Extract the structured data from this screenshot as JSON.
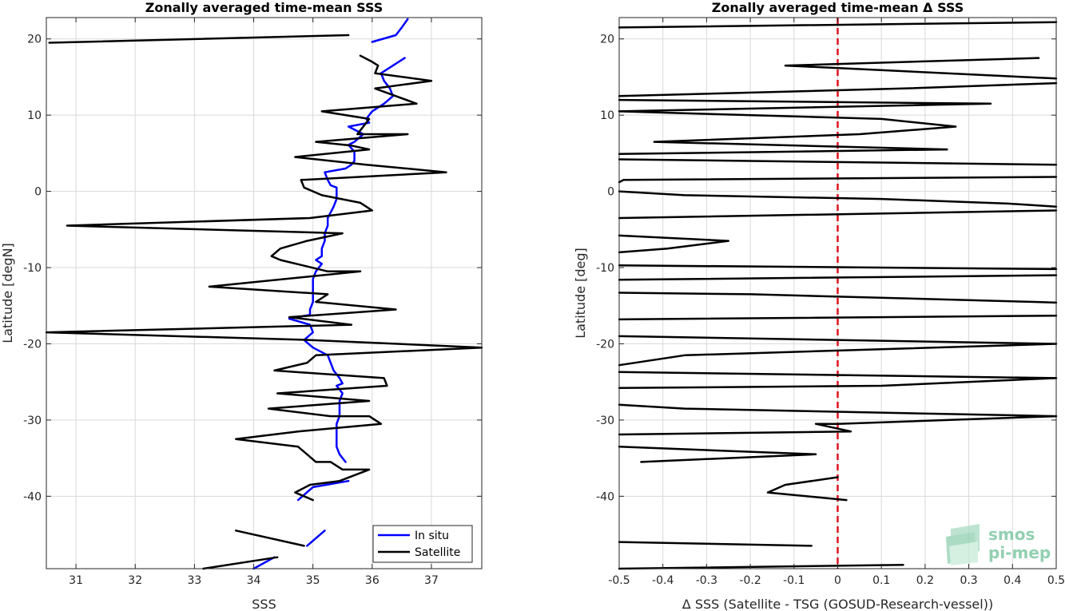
{
  "colors": {
    "insitu": "#0000ff",
    "satellite": "#000000",
    "zero_line": "#e0141e",
    "grid": "#d9d9d9",
    "logo": "#7fc8a4"
  },
  "logo": {
    "line1": "smos",
    "line2": "pi-mep"
  },
  "chart_data": [
    {
      "type": "line",
      "title": "Zonally averaged time-mean SSS",
      "xlabel": "SSS",
      "ylabel": "Latitude [degN]",
      "xlim": [
        30.5,
        37.85
      ],
      "ylim": [
        -49.5,
        22.8
      ],
      "xticks": [
        31,
        32,
        33,
        34,
        35,
        36,
        37
      ],
      "yticks": [
        -40,
        -30,
        -20,
        -10,
        0,
        10,
        20
      ],
      "grid": true,
      "legend": {
        "placement": "bottom-right",
        "entries": [
          "In situ",
          "Satellite"
        ]
      },
      "series": [
        {
          "name": "In situ",
          "color": "blue",
          "segments": [
            [
              [
                36.0,
                19.6
              ],
              [
                36.4,
                20.5
              ],
              [
                36.5,
                21.5
              ],
              [
                36.6,
                22.6
              ]
            ],
            [
              [
                36.55,
                17.5
              ],
              [
                36.15,
                15.5
              ],
              [
                36.2,
                14.5
              ],
              [
                36.3,
                13.5
              ],
              [
                36.35,
                12.5
              ],
              [
                36.2,
                11.5
              ],
              [
                36.0,
                10.5
              ],
              [
                35.9,
                9.5
              ],
              [
                35.95,
                9.0
              ],
              [
                35.6,
                8.5
              ],
              [
                35.85,
                7.5
              ],
              [
                35.7,
                6.5
              ],
              [
                35.6,
                6.1
              ],
              [
                35.7,
                5.2
              ],
              [
                35.7,
                4.0
              ],
              [
                35.65,
                3.5
              ],
              [
                35.55,
                3.0
              ],
              [
                35.2,
                2.5
              ],
              [
                35.25,
                1.5
              ],
              [
                35.3,
                0.8
              ],
              [
                35.4,
                0.5
              ],
              [
                35.4,
                -1.0
              ],
              [
                35.35,
                -2.0
              ],
              [
                35.25,
                -3.5
              ],
              [
                35.25,
                -4.5
              ],
              [
                35.2,
                -5.5
              ],
              [
                35.2,
                -6.5
              ],
              [
                35.15,
                -7.5
              ],
              [
                35.15,
                -8.5
              ],
              [
                35.05,
                -9.0
              ],
              [
                35.15,
                -9.5
              ],
              [
                35.05,
                -10.5
              ],
              [
                35.0,
                -11.5
              ],
              [
                35.0,
                -12.5
              ],
              [
                35.0,
                -13.5
              ],
              [
                35.0,
                -14.5
              ],
              [
                34.95,
                -15.5
              ],
              [
                34.95,
                -16.2
              ],
              [
                34.6,
                -16.7
              ],
              [
                34.95,
                -17.5
              ],
              [
                35.0,
                -18.5
              ],
              [
                34.85,
                -19.5
              ],
              [
                35.0,
                -20.5
              ],
              [
                35.25,
                -21.5
              ],
              [
                35.3,
                -22.5
              ],
              [
                35.35,
                -23.5
              ],
              [
                35.45,
                -24.5
              ],
              [
                35.5,
                -25.2
              ],
              [
                35.4,
                -25.5
              ],
              [
                35.5,
                -26.5
              ],
              [
                35.45,
                -27.5
              ],
              [
                35.45,
                -28.5
              ],
              [
                35.45,
                -29.5
              ],
              [
                35.4,
                -30.5
              ],
              [
                35.4,
                -31.5
              ],
              [
                35.4,
                -32.5
              ],
              [
                35.4,
                -33.5
              ],
              [
                35.45,
                -34.5
              ],
              [
                35.55,
                -35.5
              ]
            ],
            [
              [
                35.6,
                -38.0
              ],
              [
                35.0,
                -38.8
              ],
              [
                34.75,
                -40.5
              ]
            ],
            [
              [
                35.2,
                -44.5
              ],
              [
                34.9,
                -46.5
              ]
            ],
            [
              [
                34.35,
                -48.0
              ],
              [
                34.0,
                -49.5
              ]
            ]
          ]
        },
        {
          "name": "Satellite",
          "color": "black",
          "segments": [
            [
              [
                30.55,
                19.5
              ],
              [
                35.6,
                20.5
              ]
            ],
            [
              [
                35.8,
                17.8
              ],
              [
                36.0,
                17.0
              ],
              [
                36.1,
                16.5
              ],
              [
                36.05,
                15.5
              ],
              [
                37.0,
                14.5
              ],
              [
                36.05,
                13.5
              ],
              [
                36.4,
                12.5
              ],
              [
                36.75,
                11.5
              ],
              [
                35.15,
                10.5
              ],
              [
                35.95,
                9.5
              ],
              [
                35.85,
                8.5
              ],
              [
                35.75,
                7.5
              ],
              [
                36.6,
                7.5
              ],
              [
                35.05,
                6.5
              ],
              [
                35.65,
                6.0
              ],
              [
                35.95,
                5.5
              ],
              [
                34.7,
                4.5
              ],
              [
                35.9,
                3.5
              ],
              [
                37.25,
                2.5
              ],
              [
                34.8,
                1.5
              ],
              [
                34.85,
                0.5
              ],
              [
                35.15,
                -0.5
              ],
              [
                35.8,
                -1.5
              ],
              [
                36.0,
                -2.5
              ],
              [
                34.95,
                -3.5
              ],
              [
                30.85,
                -4.5
              ],
              [
                35.5,
                -5.5
              ],
              [
                34.9,
                -6.5
              ],
              [
                34.45,
                -7.5
              ],
              [
                34.3,
                -8.5
              ],
              [
                34.45,
                -9.0
              ],
              [
                35.25,
                -10.5
              ],
              [
                35.8,
                -10.5
              ],
              [
                33.25,
                -12.5
              ],
              [
                35.25,
                -13.5
              ],
              [
                35.05,
                -14.5
              ],
              [
                36.4,
                -15.5
              ],
              [
                34.6,
                -16.5
              ],
              [
                35.65,
                -17.5
              ],
              [
                30.5,
                -18.5
              ],
              [
                34.95,
                -19.5
              ],
              [
                37.85,
                -20.5
              ],
              [
                35.05,
                -21.5
              ],
              [
                34.9,
                -22.5
              ],
              [
                34.35,
                -23.5
              ],
              [
                36.2,
                -24.5
              ],
              [
                36.25,
                -25.5
              ],
              [
                34.4,
                -26.5
              ],
              [
                35.95,
                -27.5
              ],
              [
                34.25,
                -28.5
              ],
              [
                35.3,
                -29.5
              ],
              [
                35.95,
                -29.5
              ],
              [
                36.15,
                -30.5
              ],
              [
                34.75,
                -31.5
              ],
              [
                33.7,
                -32.5
              ],
              [
                34.75,
                -33.5
              ],
              [
                34.9,
                -34.5
              ],
              [
                35.05,
                -35.5
              ],
              [
                35.3,
                -35.5
              ],
              [
                35.5,
                -36.5
              ],
              [
                35.95,
                -36.5
              ],
              [
                35.45,
                -38.0
              ],
              [
                34.95,
                -38.5
              ],
              [
                34.7,
                -39.5
              ],
              [
                35.0,
                -40.5
              ]
            ],
            [
              [
                33.7,
                -44.5
              ],
              [
                34.85,
                -46.5
              ]
            ],
            [
              [
                34.4,
                -48.0
              ],
              [
                33.15,
                -49.5
              ]
            ]
          ]
        }
      ]
    },
    {
      "type": "line",
      "title": "Zonally averaged time-mean Δ SSS",
      "xlabel": "Δ SSS (Satellite - TSG (GOSUD-Research-vessel))",
      "ylabel": "Latitude [deg]",
      "xlim": [
        -0.5,
        0.5
      ],
      "ylim": [
        -49.5,
        22.8
      ],
      "xticks": [
        -0.5,
        -0.4,
        -0.3,
        -0.2,
        -0.1,
        0,
        0.1,
        0.2,
        0.3,
        0.4,
        0.5
      ],
      "yticks": [
        -40,
        -30,
        -20,
        -10,
        0,
        10,
        20
      ],
      "grid": true,
      "reference_line": {
        "x": 0,
        "style": "dashed",
        "color": "red"
      },
      "series": [
        {
          "color": "black",
          "segments": [
            [
              [
                -0.5,
                21.5
              ],
              [
                0.5,
                22.2
              ]
            ],
            [
              [
                0.46,
                17.5
              ],
              [
                -0.12,
                16.5
              ],
              [
                0.5,
                14.8
              ]
            ],
            [
              [
                0.5,
                14.2
              ],
              [
                0.15,
                13.5
              ],
              [
                -0.5,
                12.5
              ]
            ],
            [
              [
                -0.5,
                12.0
              ],
              [
                0.35,
                11.5
              ],
              [
                -0.5,
                10.5
              ]
            ],
            [
              [
                -0.5,
                10.5
              ],
              [
                0.1,
                9.5
              ],
              [
                0.27,
                8.5
              ],
              [
                0.05,
                7.5
              ],
              [
                -0.42,
                6.5
              ],
              [
                0.25,
                5.5
              ]
            ],
            [
              [
                0.25,
                5.5
              ],
              [
                -0.5,
                4.9
              ]
            ],
            [
              [
                -0.5,
                4.2
              ],
              [
                0.5,
                3.5
              ]
            ],
            [
              [
                0.5,
                1.9
              ],
              [
                -0.49,
                1.5
              ],
              [
                -0.5,
                1.2
              ]
            ],
            [
              [
                -0.5,
                0
              ],
              [
                -0.35,
                -0.5
              ],
              [
                0.1,
                -1.0
              ],
              [
                0.39,
                -1.6
              ],
              [
                0.5,
                -2.0
              ]
            ],
            [
              [
                0.5,
                -2.5
              ],
              [
                -0.5,
                -3.5
              ]
            ],
            [
              [
                -0.5,
                -5.8
              ],
              [
                -0.25,
                -6.5
              ],
              [
                -0.39,
                -7.5
              ],
              [
                -0.5,
                -8.0
              ]
            ],
            [
              [
                -0.5,
                -9.7
              ],
              [
                0.5,
                -10.2
              ]
            ],
            [
              [
                0.5,
                -11.0
              ],
              [
                -0.5,
                -11.6
              ]
            ],
            [
              [
                -0.5,
                -13.3
              ],
              [
                -0.2,
                -13.5
              ],
              [
                0.45,
                -14.5
              ],
              [
                0.5,
                -14.6
              ]
            ],
            [
              [
                0.5,
                -16.3
              ],
              [
                -0.5,
                -16.8
              ]
            ],
            [
              [
                -0.5,
                -19.0
              ],
              [
                0.5,
                -20.0
              ]
            ],
            [
              [
                0.5,
                -20.0
              ],
              [
                -0.35,
                -21.5
              ],
              [
                -0.5,
                -22.8
              ]
            ],
            [
              [
                -0.5,
                -23.7
              ],
              [
                0.5,
                -24.5
              ]
            ],
            [
              [
                0.5,
                -24.5
              ],
              [
                0.1,
                -25.5
              ],
              [
                -0.5,
                -25.8
              ]
            ],
            [
              [
                -0.5,
                -28.0
              ],
              [
                -0.35,
                -28.5
              ],
              [
                0.5,
                -29.5
              ]
            ],
            [
              [
                0.5,
                -29.5
              ],
              [
                0,
                -30.5
              ],
              [
                -0.05,
                -30.5
              ],
              [
                0.03,
                -31.5
              ],
              [
                -0.5,
                -31.9
              ]
            ],
            [
              [
                -0.5,
                -33.5
              ],
              [
                -0.05,
                -34.5
              ],
              [
                -0.45,
                -35.5
              ]
            ],
            [
              [
                0,
                -37.5
              ],
              [
                -0.12,
                -38.5
              ],
              [
                -0.16,
                -39.5
              ],
              [
                0.02,
                -40.5
              ]
            ],
            [
              [
                -0.5,
                -46.0
              ],
              [
                -0.06,
                -46.5
              ]
            ],
            [
              [
                -0.5,
                -49.5
              ],
              [
                0.15,
                -49.0
              ]
            ]
          ]
        }
      ]
    }
  ]
}
